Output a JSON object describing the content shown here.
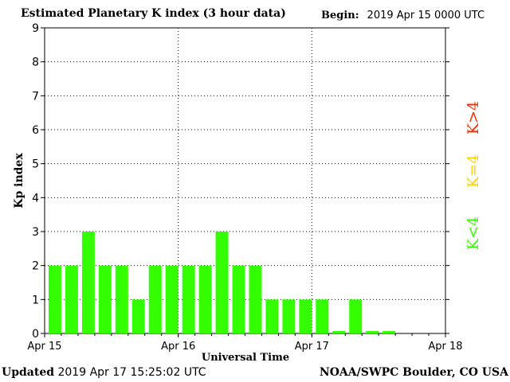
{
  "header": {
    "title": "Estimated Planetary K index (3 hour data)",
    "begin_label": "Begin:",
    "begin_value": "2019 Apr 15 0000 UTC"
  },
  "footer": {
    "updated_label": "Updated",
    "updated_value": "2019 Apr 17 15:25:02 UTC",
    "source": "NOAA/SWPC Boulder, CO USA"
  },
  "legend": [
    {
      "label": "K>4",
      "color": "#ff2a00"
    },
    {
      "label": "K=4",
      "color": "#ffd400"
    },
    {
      "label": "K<4",
      "color": "#33ff00"
    }
  ],
  "chart_data": {
    "type": "bar",
    "title": "Estimated Planetary K index (3 hour data)",
    "xlabel": "Universal Time",
    "ylabel": "Kp index",
    "ylim": [
      0,
      9
    ],
    "yticks": [
      "0",
      "1",
      "2",
      "3",
      "4",
      "5",
      "6",
      "7",
      "8",
      "9"
    ],
    "xticks": [
      "Apr 15",
      "Apr 16",
      "Apr 17",
      "Apr 18"
    ],
    "interval_hours": 3,
    "grid": true,
    "legend_placement": "right",
    "bar_color": "#33ff00",
    "values": [
      2,
      2,
      3,
      2,
      2,
      1,
      2,
      2,
      2,
      2,
      3,
      2,
      2,
      1,
      1,
      1,
      1,
      0.07,
      1,
      0.07,
      0.07
    ]
  }
}
